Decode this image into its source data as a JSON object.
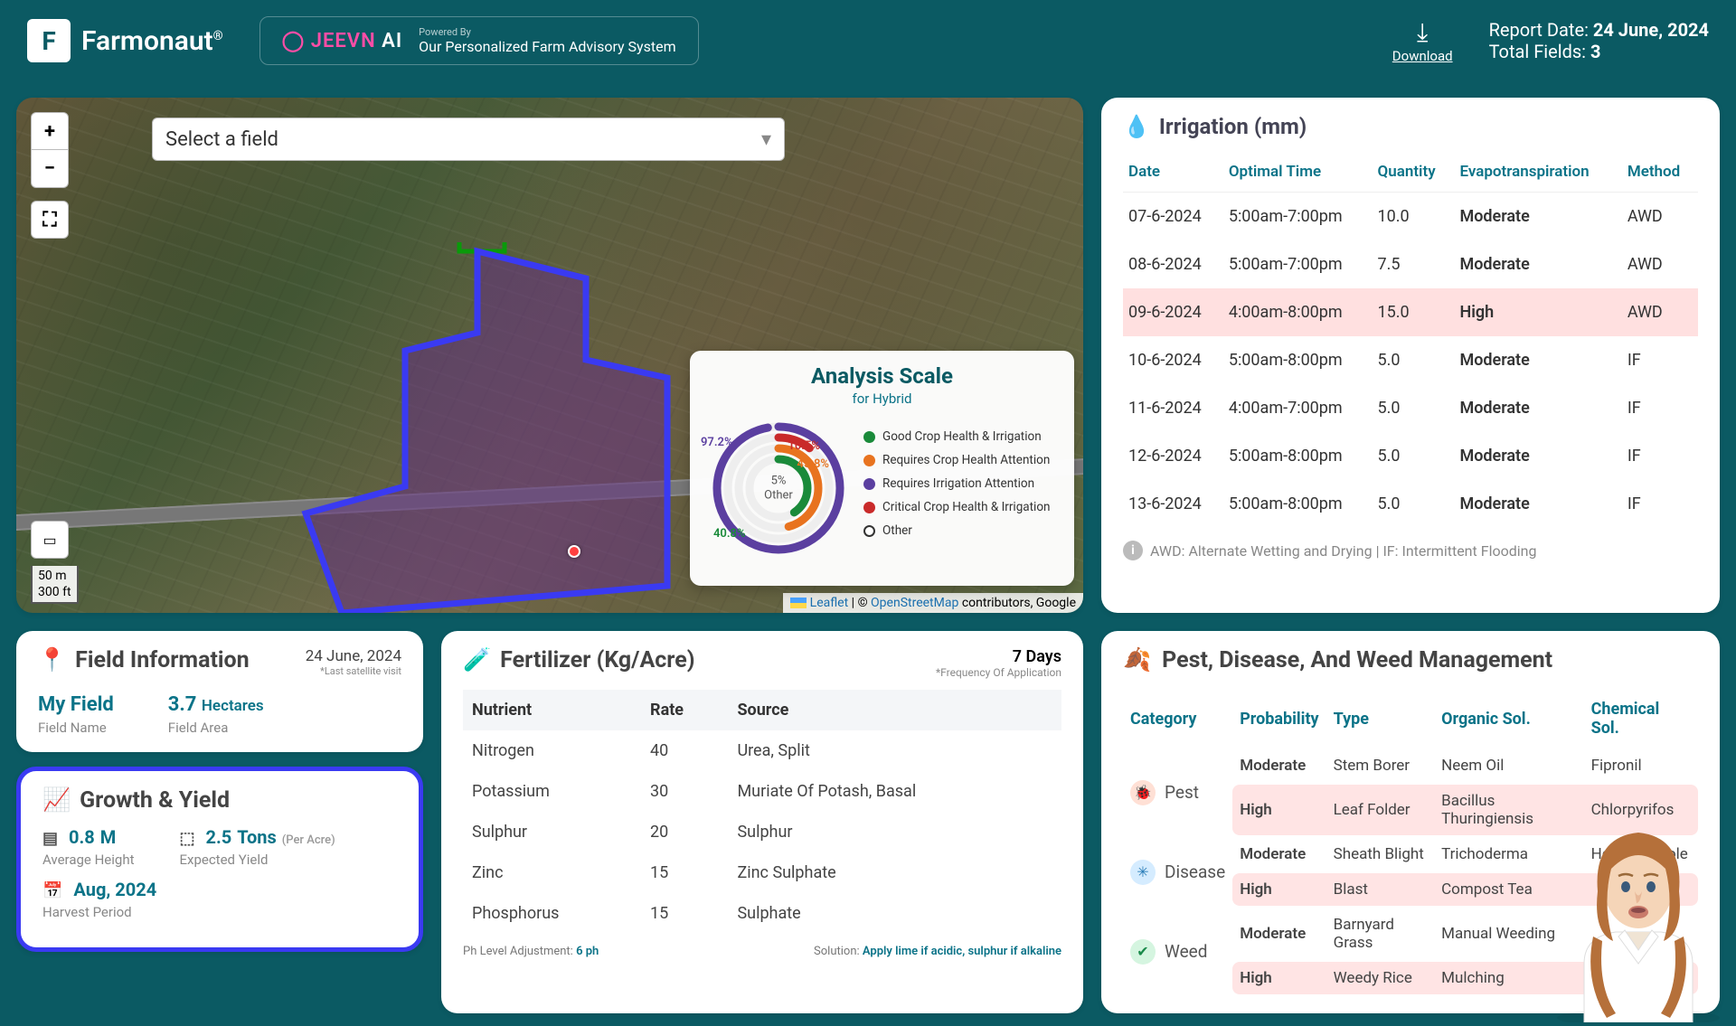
{
  "brand": {
    "name": "Farmonaut",
    "reg": "®"
  },
  "jeevn": {
    "logo1": "JEEVN",
    "logo2": "AI",
    "powered": "Powered By",
    "sub": "Our Personalized Farm Advisory System"
  },
  "download": {
    "label": "Download"
  },
  "report": {
    "date_label": "Report Date:",
    "date": "24 June, 2024",
    "fields_label": "Total Fields:",
    "fields": "3"
  },
  "map": {
    "select_placeholder": "Select a field",
    "scale1": "50 m",
    "scale2": "300 ft",
    "leaflet": "Leaflet",
    "osm": "OpenStreetMap",
    "attrib_tail": " contributors, Google"
  },
  "analysis": {
    "title": "Analysis Scale",
    "subtitle": "for Hybrid",
    "center_pct": "5%",
    "center_label": "Other",
    "pct_purple": "97.2%",
    "pct_red": "10.5%",
    "pct_orange": "45.8%",
    "pct_green": "40.8%",
    "legend": [
      {
        "label": "Good Crop Health & Irrigation",
        "color": "#1a8a3a"
      },
      {
        "label": "Requires Crop Health Attention",
        "color": "#e8731f"
      },
      {
        "label": "Requires Irrigation Attention",
        "color": "#5b3fa0"
      },
      {
        "label": "Critical Crop Health & Irrigation",
        "color": "#c92a2a"
      },
      {
        "label": "Other",
        "color": "hollow"
      }
    ],
    "rings": [
      {
        "r": 68,
        "color": "#5b3fa0",
        "frac": 0.972,
        "width": 9
      },
      {
        "r": 56,
        "color": "#c92a2a",
        "frac": 0.105,
        "width": 9
      },
      {
        "r": 44,
        "color": "#e8731f",
        "frac": 0.458,
        "width": 9
      },
      {
        "r": 32,
        "color": "#1a8a3a",
        "frac": 0.408,
        "width": 9
      }
    ]
  },
  "irrigation": {
    "title": "Irrigation (mm)",
    "cols": [
      "Date",
      "Optimal Time",
      "Quantity",
      "Evapotranspiration",
      "Method"
    ],
    "rows": [
      {
        "date": "07-6-2024",
        "time": "5:00am-7:00pm",
        "qty": "10.0",
        "evap": "Moderate",
        "method": "AWD",
        "hl": false
      },
      {
        "date": "08-6-2024",
        "time": "5:00am-7:00pm",
        "qty": "7.5",
        "evap": "Moderate",
        "method": "AWD",
        "hl": false
      },
      {
        "date": "09-6-2024",
        "time": "4:00am-8:00pm",
        "qty": "15.0",
        "evap": "High",
        "method": "AWD",
        "hl": true
      },
      {
        "date": "10-6-2024",
        "time": "5:00am-8:00pm",
        "qty": "5.0",
        "evap": "Moderate",
        "method": "IF",
        "hl": false
      },
      {
        "date": "11-6-2024",
        "time": "4:00am-7:00pm",
        "qty": "5.0",
        "evap": "Moderate",
        "method": "IF",
        "hl": false
      },
      {
        "date": "12-6-2024",
        "time": "5:00am-8:00pm",
        "qty": "5.0",
        "evap": "Moderate",
        "method": "IF",
        "hl": false
      },
      {
        "date": "13-6-2024",
        "time": "5:00am-8:00pm",
        "qty": "5.0",
        "evap": "Moderate",
        "method": "IF",
        "hl": false
      }
    ],
    "note": "AWD: Alternate Wetting and Drying | IF: Intermittent Flooding"
  },
  "field_info": {
    "title": "Field Information",
    "date": "24 June, 2024",
    "date_note": "*Last satellite visit",
    "field_name": "My Field",
    "field_name_label": "Field Name",
    "area_val": "3.7",
    "area_unit": "Hectares",
    "area_label": "Field Area"
  },
  "growth": {
    "title": "Growth & Yield",
    "height_val": "0.8",
    "height_unit": "M",
    "height_label": "Average Height",
    "yield_val": "2.5",
    "yield_unit": "Tons",
    "yield_per": "(Per Acre)",
    "yield_label": "Expected Yield",
    "harvest_val": "Aug, 2024",
    "harvest_label": "Harvest Period"
  },
  "fertilizer": {
    "title": "Fertilizer (Kg/Acre)",
    "days": "7 Days",
    "days_note": "*Frequency Of Application",
    "cols": [
      "Nutrient",
      "Rate",
      "Source"
    ],
    "rows": [
      {
        "n": "Nitrogen",
        "r": "40",
        "s": "Urea, Split"
      },
      {
        "n": "Potassium",
        "r": "30",
        "s": "Muriate Of Potash, Basal"
      },
      {
        "n": "Sulphur",
        "r": "20",
        "s": "Sulphur"
      },
      {
        "n": "Zinc",
        "r": "15",
        "s": "Zinc Sulphate"
      },
      {
        "n": "Phosphorus",
        "r": "15",
        "s": "Sulphate"
      }
    ],
    "ph_label": "Ph Level Adjustment:",
    "ph_val": "6 ph",
    "sol_label": "Solution:",
    "sol_val": "Apply lime if acidic, sulphur if alkaline"
  },
  "pest": {
    "title": "Pest, Disease, And Weed Management",
    "cols": [
      "Category",
      "Probability",
      "Type",
      "Organic Sol.",
      "Chemical Sol."
    ],
    "groups": [
      {
        "cat": "Pest",
        "icon_class": "cat-pest",
        "icon": "🐞",
        "rows": [
          {
            "prob": "Moderate",
            "type": "Stem Borer",
            "org": "Neem Oil",
            "chem": "Fipronil",
            "hl": false
          },
          {
            "prob": "High",
            "type": "Leaf Folder",
            "org": "Bacillus Thuringiensis",
            "chem": "Chlorpyrifos",
            "hl": true
          }
        ]
      },
      {
        "cat": "Disease",
        "icon_class": "cat-disease",
        "icon": "✳",
        "rows": [
          {
            "prob": "Moderate",
            "type": "Sheath Blight",
            "org": "Trichoderma",
            "chem": "Hexaconazole",
            "hl": false
          },
          {
            "prob": "High",
            "type": "Blast",
            "org": "Compost Tea",
            "chem": "",
            "hl": true
          }
        ]
      },
      {
        "cat": "Weed",
        "icon_class": "cat-weed",
        "icon": "✔",
        "rows": [
          {
            "prob": "Moderate",
            "type": "Barnyard Grass",
            "org": "Manual Weeding",
            "chem": "",
            "hl": false
          },
          {
            "prob": "High",
            "type": "Weedy Rice",
            "org": "Mulching",
            "chem": "",
            "hl": true
          }
        ]
      }
    ]
  },
  "colors": {
    "teal": "#0b7388",
    "highlight_row": "#ffe0e0"
  }
}
